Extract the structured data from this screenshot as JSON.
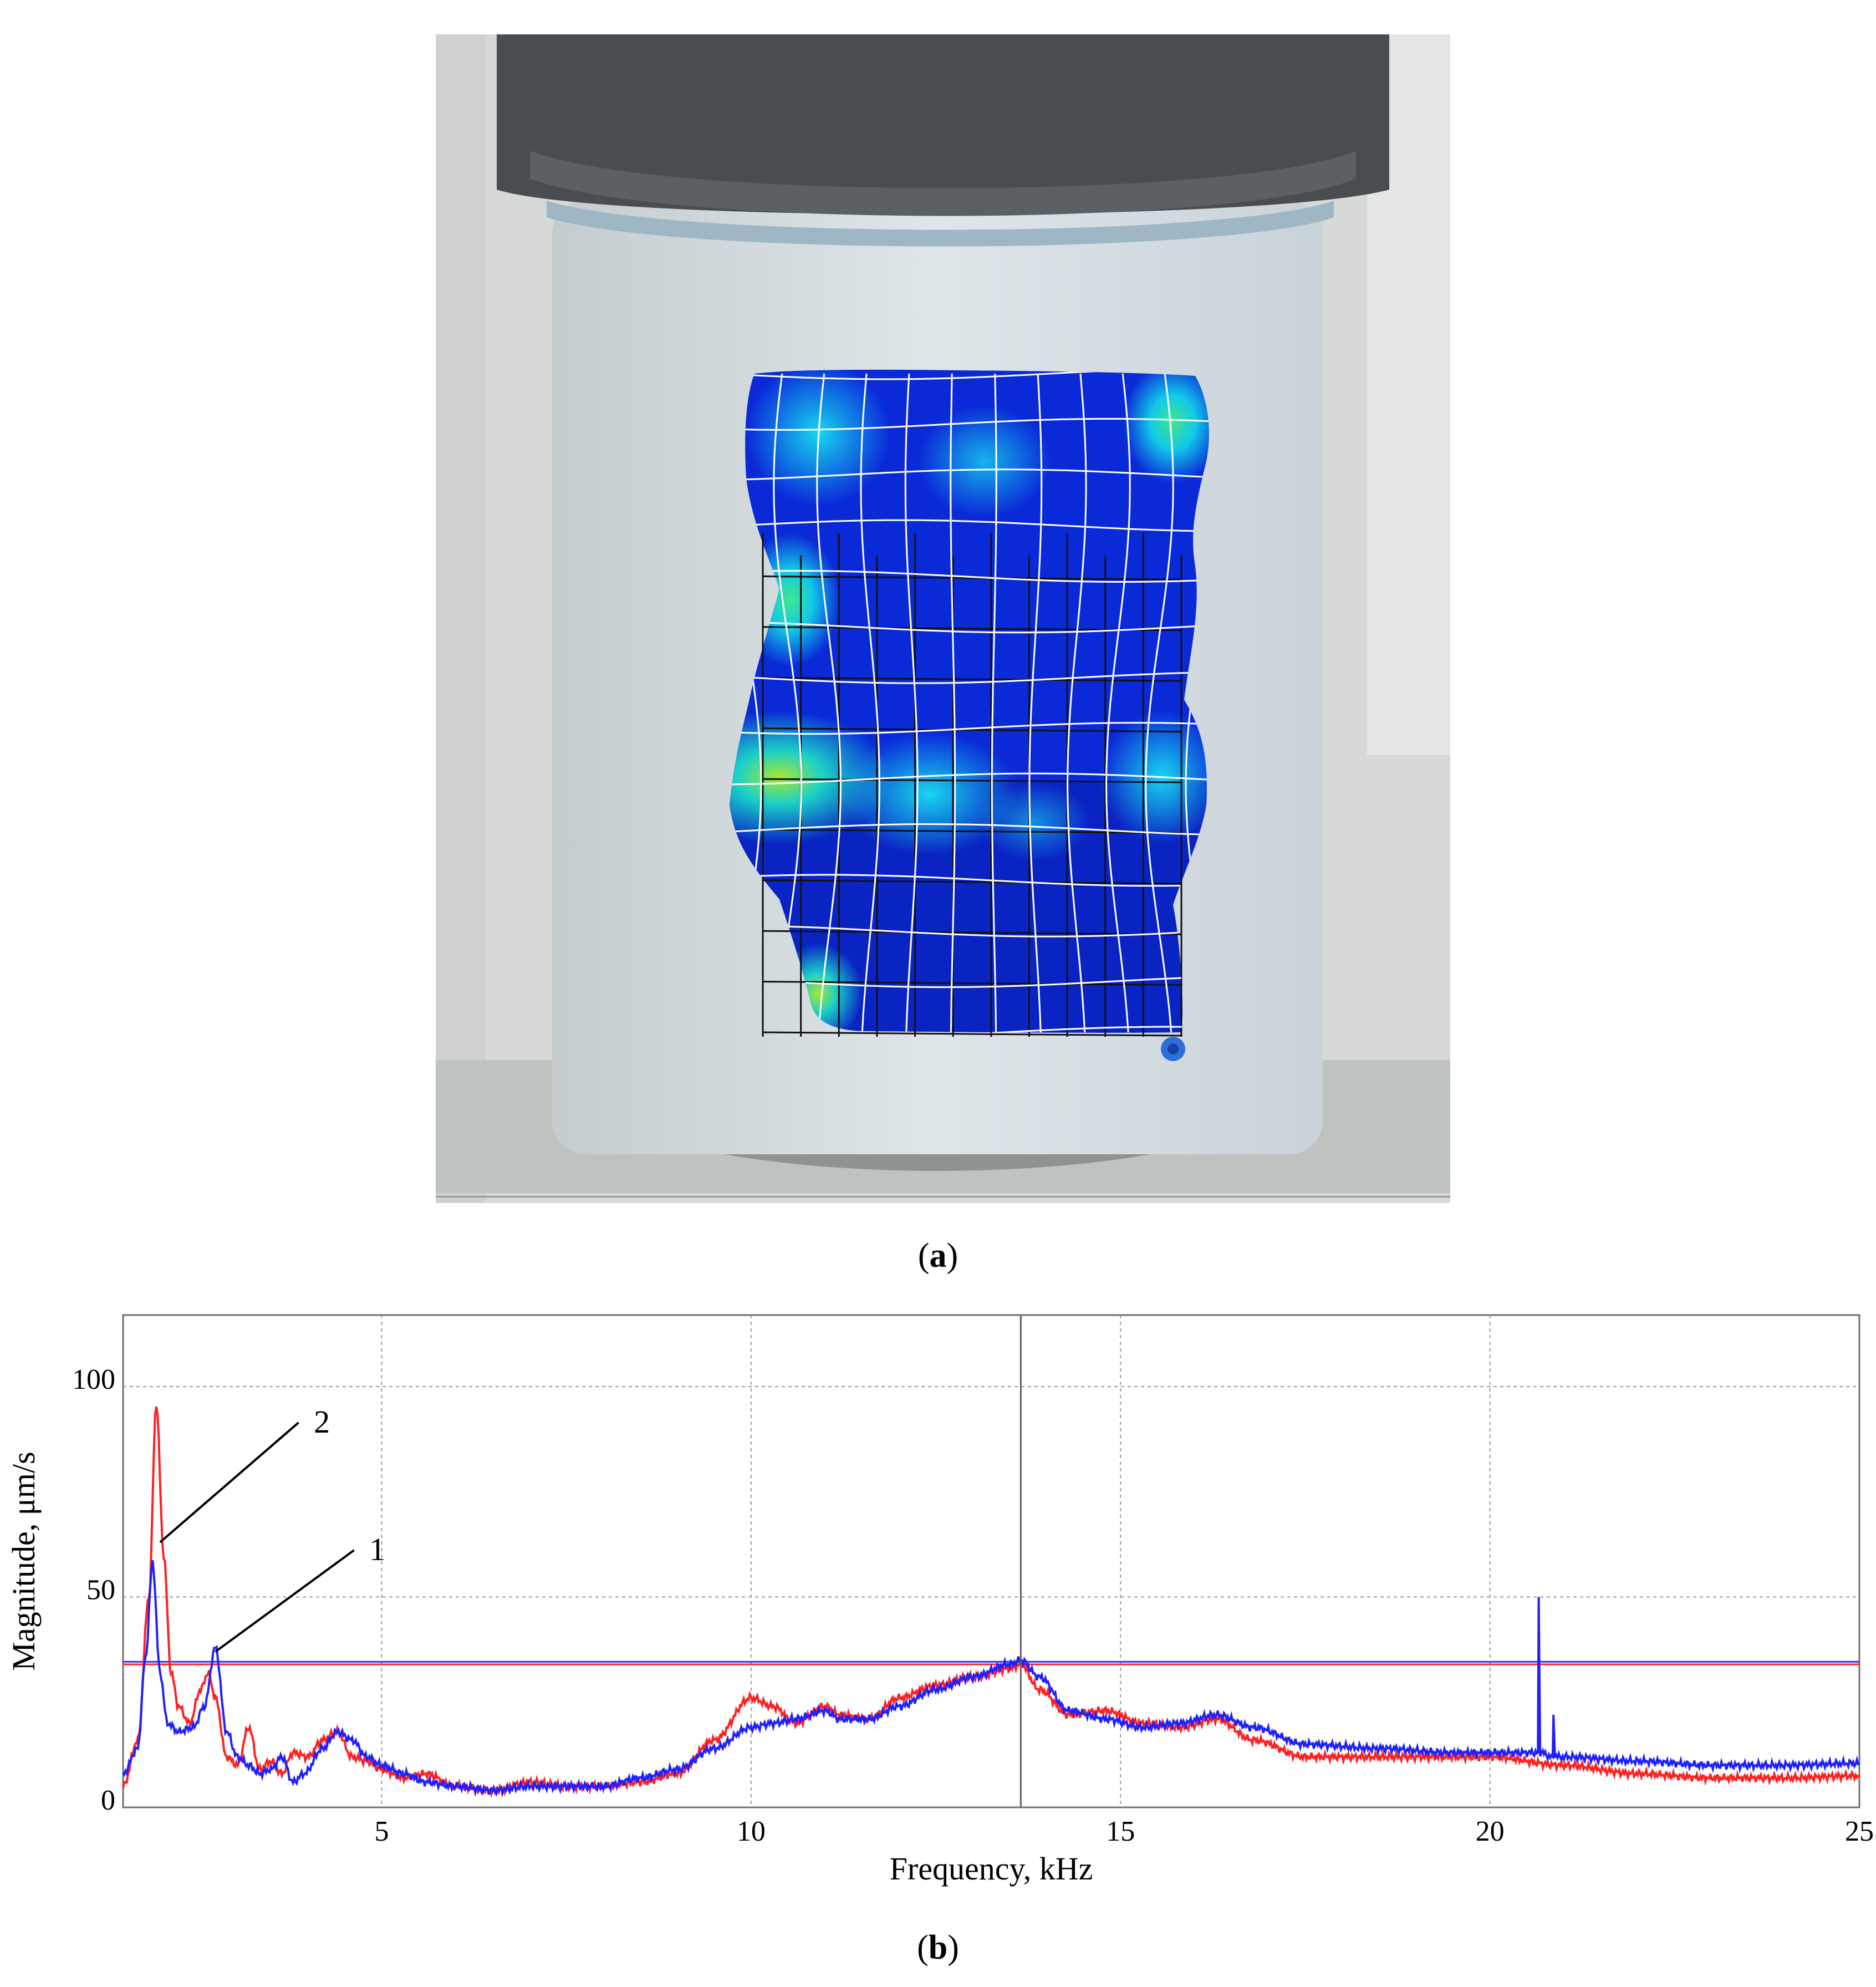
{
  "captions": {
    "a": "a",
    "b": "b"
  },
  "photo": {
    "description_colors": {
      "mesh_low": "#0a2ad8",
      "mesh_mid": "#12c8e8",
      "mesh_high": "#3ee88a",
      "background": "#d9dcd9"
    }
  },
  "chart_data": {
    "type": "line",
    "xlabel": "Frequency, kHz",
    "ylabel": "Magnitude, μm/s",
    "xlim": [
      1.5,
      25
    ],
    "ylim": [
      0,
      117
    ],
    "x_ticks": [
      5,
      10,
      15,
      20,
      25
    ],
    "y_ticks": [
      0,
      50,
      100
    ],
    "grid": true,
    "cursor_x": 13.65,
    "threshold_lines": [
      {
        "color": "#3030ff",
        "y": 34.6
      },
      {
        "color": "#ff2020",
        "y": 34.0
      }
    ],
    "callouts": [
      {
        "label": "2",
        "points_to_series": "red",
        "x": 2.0,
        "y": 63
      },
      {
        "label": "1",
        "points_to_series": "blue",
        "x": 2.75,
        "y": 37
      }
    ],
    "series": [
      {
        "color": "#ff2020",
        "x": [
          1.5,
          1.7,
          1.85,
          1.95,
          2.05,
          2.15,
          2.25,
          2.4,
          2.55,
          2.65,
          2.75,
          2.9,
          3.05,
          3.2,
          3.35,
          3.5,
          3.65,
          3.8,
          4.0,
          4.2,
          4.4,
          4.6,
          4.8,
          5.0,
          5.3,
          5.6,
          6.0,
          6.5,
          7.0,
          7.5,
          8.0,
          8.5,
          9.0,
          9.5,
          10.0,
          10.3,
          10.6,
          11.0,
          11.2,
          11.6,
          12.0,
          12.5,
          13.0,
          13.5,
          13.65,
          13.9,
          14.3,
          14.8,
          15.3,
          15.8,
          16.3,
          16.8,
          17.5,
          18.5,
          19.5,
          20.0,
          21.0,
          22.0,
          23.0,
          24.0,
          25.0
        ],
        "values": [
          5,
          16,
          50,
          96,
          60,
          32,
          24,
          20,
          28,
          32,
          26,
          12,
          10,
          19,
          9,
          11,
          8,
          13,
          12,
          16,
          18,
          12,
          11,
          9,
          7,
          8,
          5,
          4,
          6,
          5,
          5,
          6,
          8,
          16,
          26,
          24,
          20,
          24,
          22,
          21,
          26,
          29,
          31,
          33,
          34,
          28,
          22,
          23,
          20,
          19,
          21,
          16,
          12,
          12,
          12,
          12,
          10,
          8,
          7,
          7,
          7.5
        ]
      },
      {
        "color": "#2020ff",
        "x": [
          1.5,
          1.7,
          1.8,
          1.9,
          2.0,
          2.1,
          2.25,
          2.45,
          2.6,
          2.75,
          2.9,
          3.05,
          3.2,
          3.35,
          3.5,
          3.65,
          3.8,
          3.95,
          4.2,
          4.4,
          4.6,
          4.8,
          5.0,
          5.3,
          5.6,
          6.0,
          6.5,
          7.0,
          7.5,
          8.0,
          8.5,
          9.0,
          9.5,
          10.0,
          10.3,
          10.6,
          11.0,
          11.2,
          11.6,
          12.0,
          12.5,
          13.0,
          13.5,
          13.65,
          13.9,
          14.3,
          14.8,
          15.3,
          15.8,
          16.3,
          16.8,
          17.5,
          18.5,
          19.5,
          20.0,
          20.65,
          20.66,
          20.68,
          20.85,
          20.86,
          20.88,
          21.0,
          22.0,
          23.0,
          24.0,
          25.0
        ],
        "values": [
          8,
          14,
          35,
          58,
          32,
          20,
          18,
          19,
          24,
          38,
          18,
          12,
          10,
          8,
          9,
          12,
          6,
          8,
          14,
          18,
          16,
          12,
          10,
          8,
          6,
          5,
          4,
          5,
          5,
          5,
          7,
          9,
          14,
          19,
          20,
          21,
          23,
          21,
          21,
          24,
          28,
          31,
          34,
          35,
          31,
          23,
          21,
          19,
          20,
          22,
          19,
          15,
          14,
          13,
          13,
          13,
          50,
          13,
          12,
          22,
          12,
          12,
          11,
          10,
          10,
          10.5
        ]
      }
    ]
  }
}
